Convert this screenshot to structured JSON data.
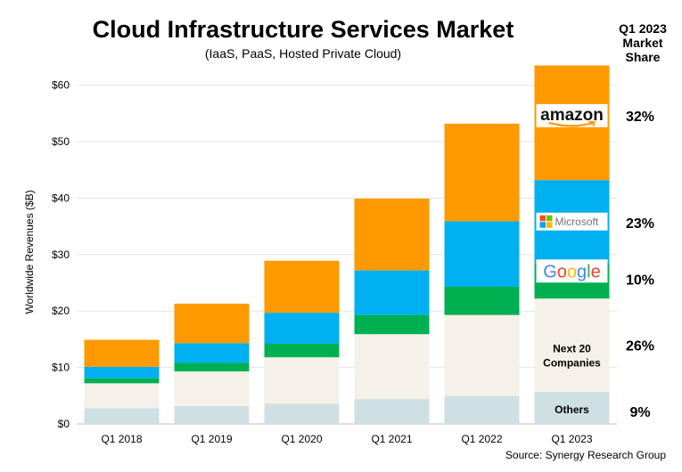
{
  "chart_data": {
    "type": "bar",
    "stacked": true,
    "title": "Cloud Infrastructure Services Market",
    "subtitle": "(IaaS, PaaS, Hosted Private Cloud)",
    "ylabel": "Worldwide Revenues ($B)",
    "xlabel": "",
    "ylim": [
      0,
      65
    ],
    "yticks": [
      "$0",
      "$10",
      "$20",
      "$30",
      "$40",
      "$50",
      "$60"
    ],
    "ytick_values": [
      0,
      10,
      20,
      30,
      40,
      50,
      60
    ],
    "grid": true,
    "categories": [
      "Q1 2018",
      "Q1 2019",
      "Q1 2020",
      "Q1 2021",
      "Q1 2022",
      "Q1 2023"
    ],
    "series": [
      {
        "key": "others",
        "label": "Others",
        "color": "#cfe0e3",
        "values": [
          2.8,
          3.2,
          3.6,
          4.4,
          5.0,
          5.7
        ]
      },
      {
        "key": "next20",
        "label": "Next 20 Companies",
        "color": "#f5f1e8",
        "values": [
          4.4,
          6.1,
          8.2,
          11.5,
          14.3,
          16.5
        ]
      },
      {
        "key": "google",
        "label": "",
        "color": "#00b050",
        "values": [
          0.9,
          1.5,
          2.4,
          3.4,
          5.0,
          6.3
        ]
      },
      {
        "key": "microsoft",
        "label": "",
        "color": "#00b0f0",
        "values": [
          2.0,
          3.5,
          5.5,
          7.9,
          11.6,
          14.7
        ]
      },
      {
        "key": "amazon",
        "label": "",
        "color": "#ff9900",
        "values": [
          4.8,
          7.0,
          9.2,
          12.7,
          17.3,
          20.3
        ]
      }
    ],
    "share_header": "Q1 2023 Market Share",
    "shares": [
      {
        "key": "amazon",
        "text": "32%"
      },
      {
        "key": "microsoft",
        "text": "23%"
      },
      {
        "key": "google",
        "text": "10%"
      },
      {
        "key": "next20",
        "text": "26%"
      },
      {
        "key": "others",
        "text": "9%"
      }
    ],
    "logos": {
      "amazon": "amazon",
      "microsoft": "Microsoft",
      "google": "Google"
    },
    "source": "Source: Synergy Research Group"
  }
}
